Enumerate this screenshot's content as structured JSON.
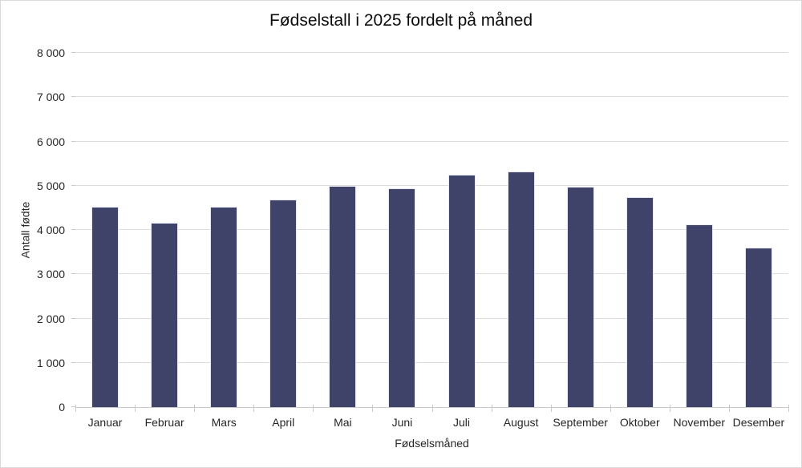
{
  "chart_data": {
    "type": "bar",
    "title": "Fødselstall i 2025 fordelt på måned",
    "xlabel": "Fødselsmåned",
    "ylabel": "Antall fødte",
    "categories": [
      "Januar",
      "Februar",
      "Mars",
      "April",
      "Mai",
      "Juni",
      "Juli",
      "August",
      "September",
      "Oktober",
      "November",
      "Desember"
    ],
    "values": [
      4520,
      4170,
      4530,
      4690,
      5000,
      4950,
      5250,
      5330,
      4980,
      4740,
      4120,
      3610
    ],
    "ylim": [
      0,
      8000
    ],
    "yticks": [
      {
        "value": 0,
        "label": "0"
      },
      {
        "value": 1000,
        "label": "1 000"
      },
      {
        "value": 2000,
        "label": "2 000"
      },
      {
        "value": 3000,
        "label": "3 000"
      },
      {
        "value": 4000,
        "label": "4 000"
      },
      {
        "value": 5000,
        "label": "5 000"
      },
      {
        "value": 6000,
        "label": "6 000"
      },
      {
        "value": 7000,
        "label": "7 000"
      },
      {
        "value": 8000,
        "label": "8 000"
      }
    ],
    "grid": true,
    "legend": false,
    "colors": {
      "bar": "#3f4269",
      "bar_border": "#e7e8f1",
      "gridline": "#dcdcdc",
      "axis_line": "#c9c9c9",
      "tick_text": "#262626",
      "title_text": "#0d0d0d",
      "chart_border": "#d9d9d9",
      "background": "#ffffff"
    }
  }
}
